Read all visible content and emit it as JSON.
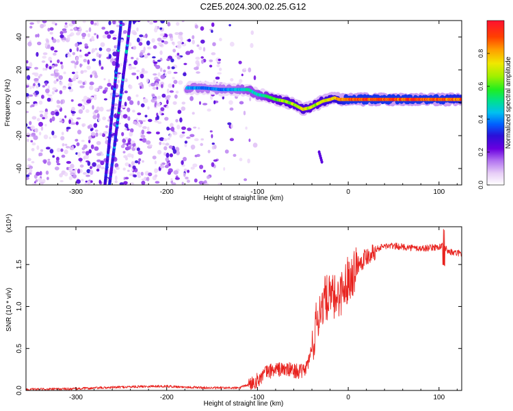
{
  "title": "C2E5.2024.300.02.25.G12",
  "colors": {
    "snr_line": "#e8221e",
    "colormap": [
      "#ffffff",
      "#e9d8fb",
      "#c9a8f3",
      "#8a3df0",
      "#5a00e6",
      "#2a18d8",
      "#0055ff",
      "#00c8f0",
      "#00e080",
      "#33ee00",
      "#c8f000",
      "#ffd000",
      "#ff7a00",
      "#ff1010"
    ]
  },
  "chart_data": [
    {
      "type": "heatmap",
      "title": "",
      "xlabel": "Height of straight line (km)",
      "ylabel": "Frequency (Hz)",
      "xlim": [
        -355,
        125
      ],
      "ylim": [
        -50,
        50
      ],
      "xticks": [
        -300,
        -200,
        -100,
        0,
        100
      ],
      "yticks": [
        -40,
        -20,
        0,
        20,
        40
      ],
      "colorbar": {
        "label": "Normalized spectral amplitude",
        "range": [
          0,
          1
        ],
        "ticks": [
          "0.0",
          "0.2",
          "0.4",
          "0.6",
          "0.8"
        ]
      },
      "ridge": {
        "x": [
          -178,
          -160,
          -140,
          -120,
          -110,
          -100,
          -90,
          -80,
          -70,
          -60,
          -50,
          -42,
          -35,
          -28,
          -20,
          -15,
          -10,
          -5,
          0,
          20,
          40,
          60,
          80,
          100,
          125
        ],
        "y": [
          9,
          9,
          8,
          8,
          8,
          5,
          4,
          2,
          1,
          -1,
          -4,
          -3,
          -1,
          1,
          2,
          3,
          2,
          2,
          2,
          2,
          2,
          2,
          2,
          2,
          2
        ],
        "amplitude": [
          0.45,
          0.4,
          0.4,
          0.45,
          0.5,
          0.5,
          0.55,
          0.65,
          0.7,
          0.7,
          0.75,
          0.7,
          0.7,
          0.75,
          0.8,
          0.8,
          0.85,
          0.9,
          0.95,
          0.95,
          0.95,
          0.95,
          0.95,
          0.95,
          0.9
        ]
      },
      "streaks": [
        {
          "x": [
            -268,
            -250
          ],
          "y": [
            -50,
            50
          ]
        },
        {
          "x": [
            -263,
            -240
          ],
          "y": [
            -50,
            50
          ]
        }
      ],
      "noise_region": {
        "x": [
          -355,
          -140
        ],
        "amplitude": [
          0.05,
          0.3
        ]
      },
      "tail": {
        "x": [
          -32,
          -29
        ],
        "y": [
          -30,
          -36
        ]
      }
    },
    {
      "type": "line",
      "title": "",
      "xlabel": "Height of straight line (km)",
      "ylabel": "SNR (10 * v/v)",
      "yscale_label": "(x10⁴)",
      "xlim": [
        -355,
        125
      ],
      "ylim": [
        0,
        1.95
      ],
      "xticks": [
        -300,
        -200,
        -100,
        0,
        100
      ],
      "yticks": [
        "0.0",
        "0.5",
        "1.0",
        "1.5"
      ],
      "series": [
        {
          "x": [
            -355,
            -300,
            -250,
            -220,
            -200,
            -180,
            -150,
            -120,
            -110,
            -100,
            -90,
            -80,
            -70,
            -60,
            -50,
            -45,
            -40,
            -35,
            -30,
            -25,
            -20,
            -15,
            -10,
            -5,
            0,
            5,
            10,
            20,
            30,
            40,
            50,
            60,
            70,
            80,
            90,
            100,
            105,
            110,
            115,
            125
          ],
          "y": [
            0.01,
            0.02,
            0.04,
            0.05,
            0.05,
            0.04,
            0.03,
            0.03,
            0.07,
            0.12,
            0.22,
            0.25,
            0.25,
            0.24,
            0.22,
            0.3,
            0.5,
            0.8,
            1.0,
            1.1,
            1.1,
            1.1,
            1.15,
            1.2,
            1.35,
            1.4,
            1.5,
            1.6,
            1.68,
            1.72,
            1.72,
            1.71,
            1.7,
            1.69,
            1.7,
            1.71,
            1.72,
            1.66,
            1.64,
            1.63
          ]
        }
      ]
    }
  ]
}
